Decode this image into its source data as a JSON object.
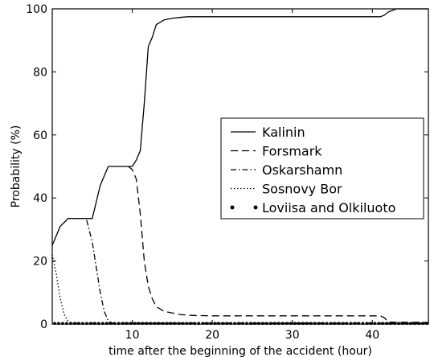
{
  "chart_data": {
    "type": "line",
    "title": "",
    "xlabel": "time after the beginning of the accident (hour)",
    "ylabel": "Probability (%)",
    "xlim": [
      0,
      47
    ],
    "ylim": [
      0,
      100
    ],
    "xticks": [
      10,
      20,
      30,
      40
    ],
    "yticks": [
      0,
      20,
      40,
      60,
      80,
      100
    ],
    "grid": false,
    "legend_position": "center-right",
    "series": [
      {
        "name": "Kalinin",
        "style": "solid",
        "x": [
          0,
          0.5,
          1,
          2,
          3,
          4,
          4.5,
          5,
          6,
          7,
          8,
          9,
          10,
          10.5,
          11,
          11.5,
          12,
          12.5,
          13,
          14,
          15,
          16,
          17,
          18,
          20,
          25,
          30,
          35,
          40,
          41,
          41.5,
          42,
          43,
          44,
          47
        ],
        "y": [
          25,
          28,
          31,
          33.5,
          33.5,
          33.5,
          33.5,
          33.5,
          44,
          50,
          50,
          50,
          50,
          52,
          55,
          70,
          88,
          91,
          95,
          96.5,
          97,
          97.3,
          97.5,
          97.5,
          97.5,
          97.5,
          97.5,
          97.5,
          97.5,
          97.5,
          98,
          99,
          100,
          100,
          100
        ]
      },
      {
        "name": "Forsmark",
        "style": "dashed",
        "x": [
          9.5,
          10,
          10.5,
          11,
          11.5,
          12,
          12.5,
          13,
          14,
          15,
          16,
          17,
          18,
          20,
          25,
          30,
          35,
          40,
          41,
          41.5,
          42,
          47
        ],
        "y": [
          50,
          49,
          46,
          35,
          20,
          12,
          8,
          5.5,
          4,
          3.5,
          3,
          2.8,
          2.7,
          2.6,
          2.6,
          2.6,
          2.6,
          2.6,
          2.6,
          2,
          0.6,
          0.5
        ]
      },
      {
        "name": "Oskarshamn",
        "style": "dashdot",
        "x": [
          4.3,
          5,
          5.5,
          6,
          6.5,
          7,
          7.5,
          47
        ],
        "y": [
          33,
          26,
          18,
          10,
          4,
          1,
          0.3,
          0.3
        ]
      },
      {
        "name": "Sosnovy Bor",
        "style": "dotted",
        "x": [
          0,
          0.5,
          1,
          1.5,
          2,
          2.5,
          47
        ],
        "y": [
          22,
          16,
          8,
          3,
          0.8,
          0.3,
          0.3
        ]
      },
      {
        "name": "Loviisa and Olkiluoto",
        "style": "dots",
        "x": [
          0,
          47
        ],
        "y": [
          0.2,
          0.2
        ]
      }
    ]
  }
}
